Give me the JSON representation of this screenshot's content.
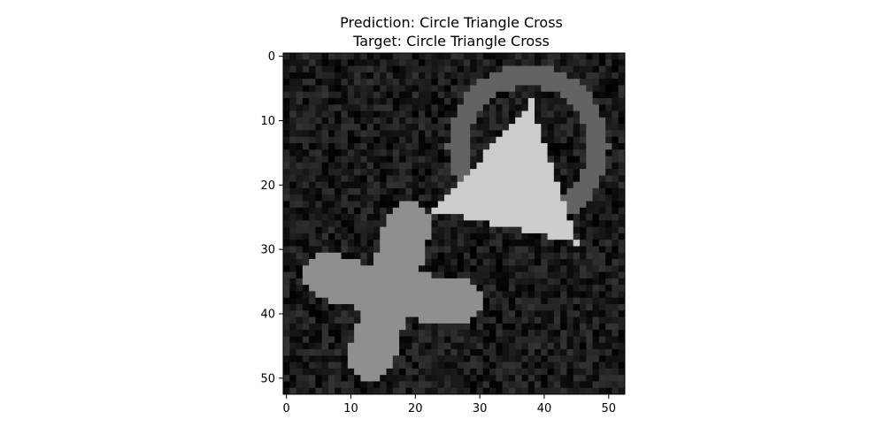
{
  "chart_data": {
    "type": "heatmap",
    "title_lines": [
      "Prediction: Circle Triangle Cross",
      "Target: Circle Triangle Cross"
    ],
    "xlabel": "",
    "ylabel": "",
    "xlim": [
      -0.5,
      52.5
    ],
    "ylim": [
      52.5,
      -0.5
    ],
    "x_ticks": [
      0,
      10,
      20,
      30,
      40,
      50
    ],
    "y_ticks": [
      0,
      10,
      20,
      30,
      40,
      50
    ],
    "x_tick_labels": [
      "0",
      "10",
      "20",
      "30",
      "40",
      "50"
    ],
    "y_tick_labels": [
      "0",
      "10",
      "20",
      "30",
      "40",
      "50"
    ],
    "grid": false,
    "colormap": "gray",
    "image_size": [
      53,
      53
    ],
    "background_noise": [
      0.0,
      0.2
    ],
    "shapes": [
      {
        "name": "Circle",
        "kind": "ring",
        "value": 0.39,
        "center": [
          37.5,
          14.0
        ],
        "outer_radius": 12.5,
        "inner_radius": 9.3
      },
      {
        "name": "Triangle",
        "kind": "triangle",
        "value": 0.8,
        "vertices": [
          [
            38,
            7
          ],
          [
            23,
            24
          ],
          [
            45,
            29
          ]
        ]
      },
      {
        "name": "Cross",
        "kind": "cross",
        "value": 0.56,
        "center": [
          16,
          37
        ],
        "arm_half_width": 3.6,
        "arms": [
          [
            19,
            26
          ],
          [
            27,
            38
          ],
          [
            13,
            47
          ],
          [
            6,
            34
          ]
        ]
      }
    ]
  }
}
